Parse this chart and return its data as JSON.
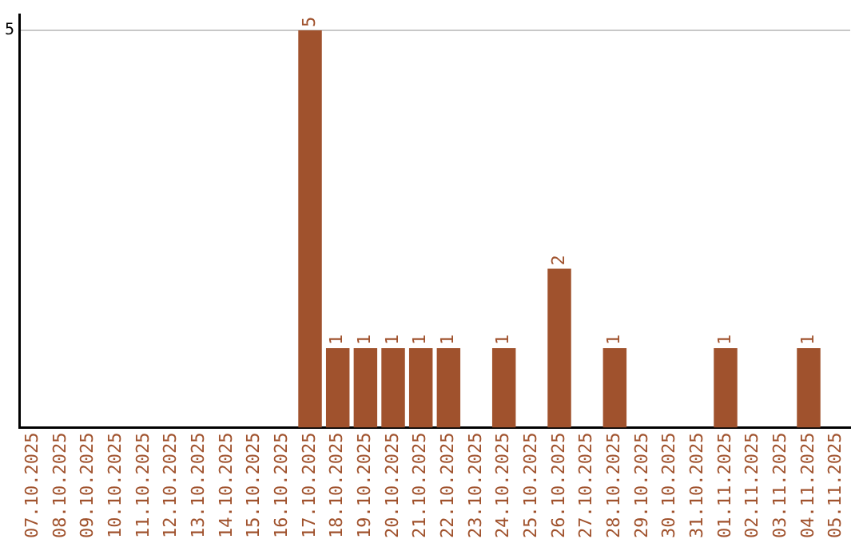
{
  "chart_data": {
    "type": "bar",
    "categories": [
      "07.10.2025",
      "08.10.2025",
      "09.10.2025",
      "10.10.2025",
      "11.10.2025",
      "12.10.2025",
      "13.10.2025",
      "14.10.2025",
      "15.10.2025",
      "16.10.2025",
      "17.10.2025",
      "18.10.2025",
      "19.10.2025",
      "20.10.2025",
      "21.10.2025",
      "22.10.2025",
      "23.10.2025",
      "24.10.2025",
      "25.10.2025",
      "26.10.2025",
      "27.10.2025",
      "28.10.2025",
      "29.10.2025",
      "30.10.2025",
      "31.10.2025",
      "01.11.2025",
      "02.11.2025",
      "03.11.2025",
      "04.11.2025",
      "05.11.2025"
    ],
    "values": [
      null,
      null,
      null,
      null,
      null,
      null,
      null,
      null,
      null,
      null,
      5,
      1,
      1,
      1,
      1,
      1,
      null,
      1,
      null,
      2,
      null,
      1,
      null,
      null,
      null,
      1,
      null,
      null,
      1,
      null
    ],
    "color": "#a0522d",
    "ylim": [
      0,
      5.2
    ],
    "yticks": [
      5
    ],
    "grid": "y",
    "data_labels": true,
    "legend": false
  }
}
